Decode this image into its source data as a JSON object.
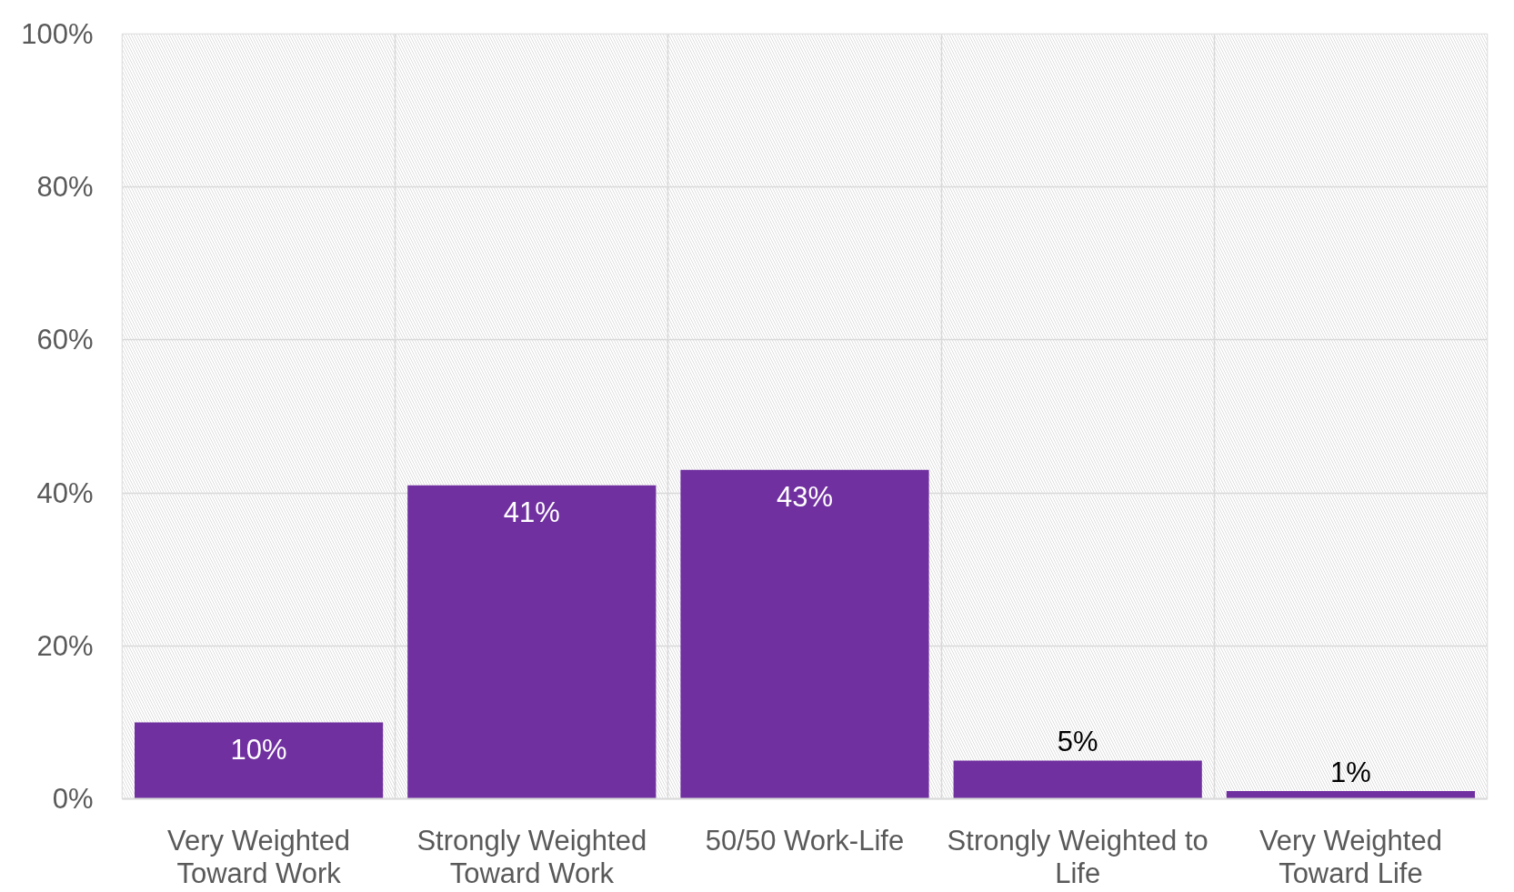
{
  "chart_data": {
    "type": "bar",
    "categories": [
      "Very Weighted Toward Work",
      "Strongly Weighted Toward Work",
      "50/50 Work-Life",
      "Strongly Weighted to Life",
      "Very Weighted Toward Life"
    ],
    "values": [
      10,
      41,
      43,
      5,
      1
    ],
    "color": "#7030a0",
    "value_labels": [
      "10%",
      "41%",
      "43%",
      "5%",
      "1%"
    ],
    "ylim": [
      0,
      100
    ],
    "yticks": [
      {
        "value": 0,
        "label": "0%"
      },
      {
        "value": 20,
        "label": "20%"
      },
      {
        "value": 40,
        "label": "40%"
      },
      {
        "value": 60,
        "label": "60%"
      },
      {
        "value": 80,
        "label": "80%"
      },
      {
        "value": 100,
        "label": "100%"
      }
    ],
    "grid": true
  }
}
